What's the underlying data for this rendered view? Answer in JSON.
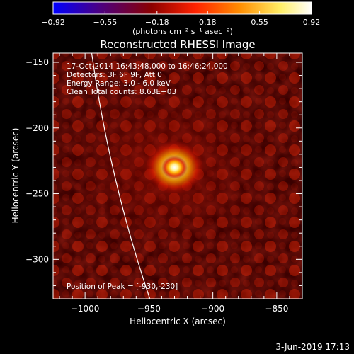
{
  "chart_data": {
    "type": "heatmap",
    "title": "Reconstructed RHESSI Image",
    "xlabel": "Heliocentric X (arcsec)",
    "ylabel": "Heliocentric Y (arcsec)",
    "xlim": [
      -1025,
      -830
    ],
    "ylim": [
      -330,
      -143
    ],
    "x_ticks": [
      -1000,
      -950,
      -900,
      -850
    ],
    "y_ticks": [
      -150,
      -200,
      -250,
      -300
    ],
    "x_tick_labels": [
      "−1000",
      "−950",
      "−900",
      "−850"
    ],
    "y_tick_labels": [
      "−150",
      "−200",
      "−250",
      "−300"
    ],
    "colorbar": {
      "min": -0.92,
      "max": 0.92,
      "ticks": [
        -0.92,
        -0.55,
        -0.18,
        0.18,
        0.55,
        0.92
      ],
      "tick_labels": [
        "−0.92",
        "−0.55",
        "−0.18",
        "0.18",
        "0.55",
        "0.92"
      ],
      "unit_label": "(photons cm⁻² s⁻¹ asec⁻²)",
      "colormap": [
        "#0000ff",
        "#4b0082",
        "#8b0000",
        "#ff4500",
        "#ffa500",
        "#ffff99",
        "#ffffff"
      ]
    },
    "annotations": [
      "17-Oct-2014 16:43:48.000 to 16:46:24.000",
      "Detectors: 3F 6F 9F, Att 0",
      "Energy Range: 3.0 - 6.0 keV",
      "Clean    Total counts: 8.63E+03",
      "Position of Peak = [-930,-230]"
    ],
    "peak": {
      "x": -930,
      "y": -230
    },
    "limb_color": "#ffffff"
  },
  "footer": {
    "timestamp": "3-Jun-2019 17:13"
  }
}
